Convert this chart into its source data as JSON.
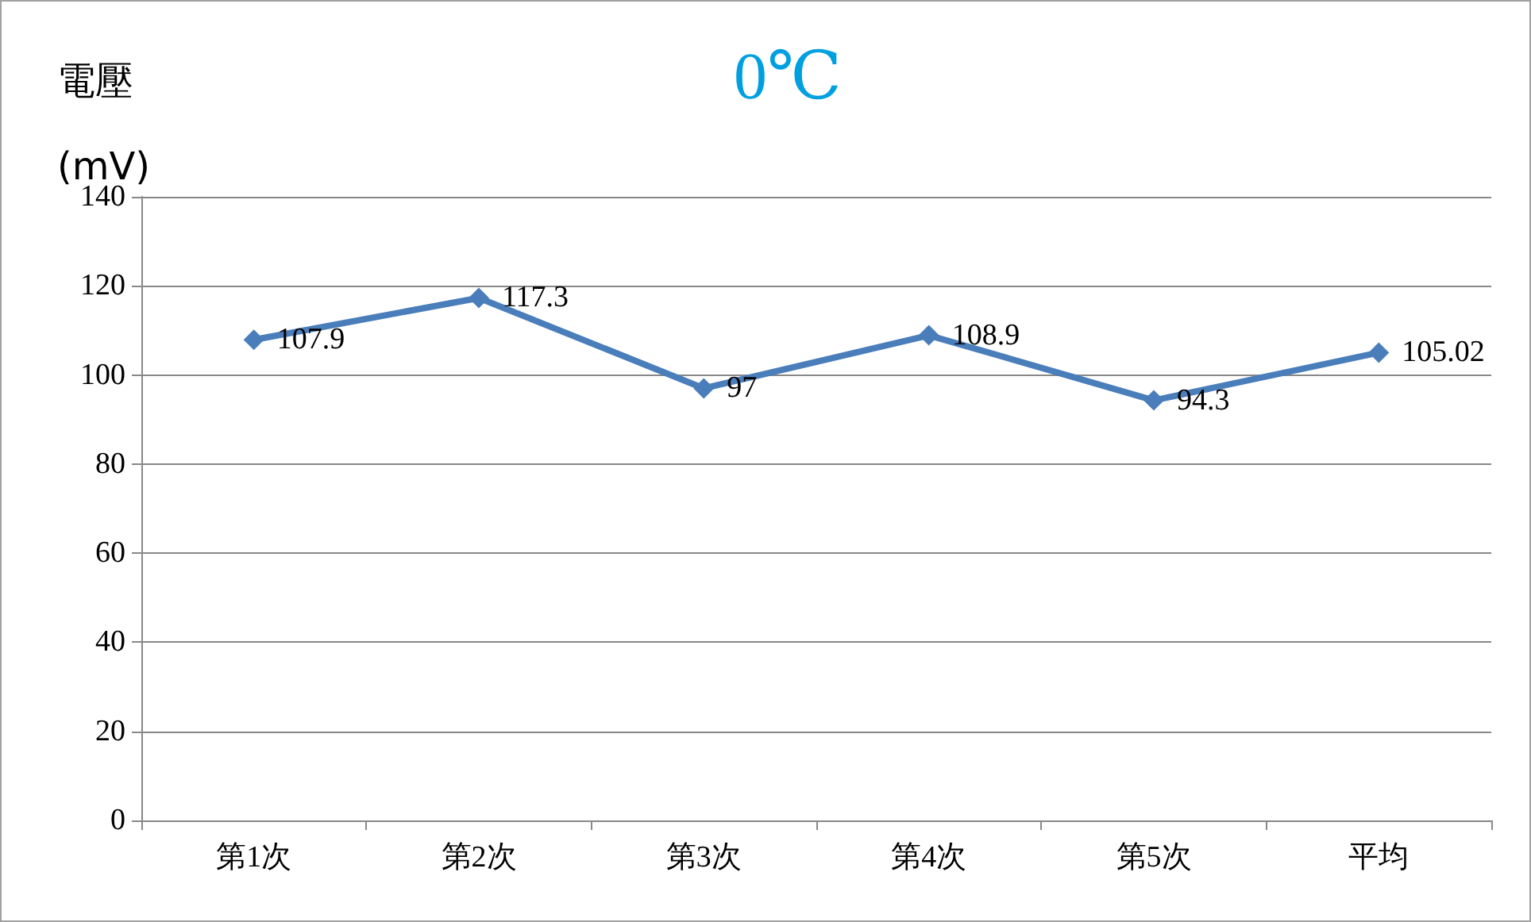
{
  "chart_data": {
    "type": "line",
    "title": "0℃",
    "ylabel": "電壓\n(mV)",
    "categories": [
      "第1次",
      "第2次",
      "第3次",
      "第4次",
      "第5次",
      "平均"
    ],
    "series": [
      {
        "color": "#4a7ebb",
        "values": [
          107.9,
          117.3,
          97,
          108.9,
          94.3,
          105.02
        ]
      }
    ],
    "ylim": [
      0,
      140
    ],
    "yticks": [
      0,
      20,
      40,
      60,
      80,
      100,
      120,
      140
    ],
    "grid": "y",
    "marker": "diamond",
    "line_style": "solid",
    "data_labels": true
  }
}
